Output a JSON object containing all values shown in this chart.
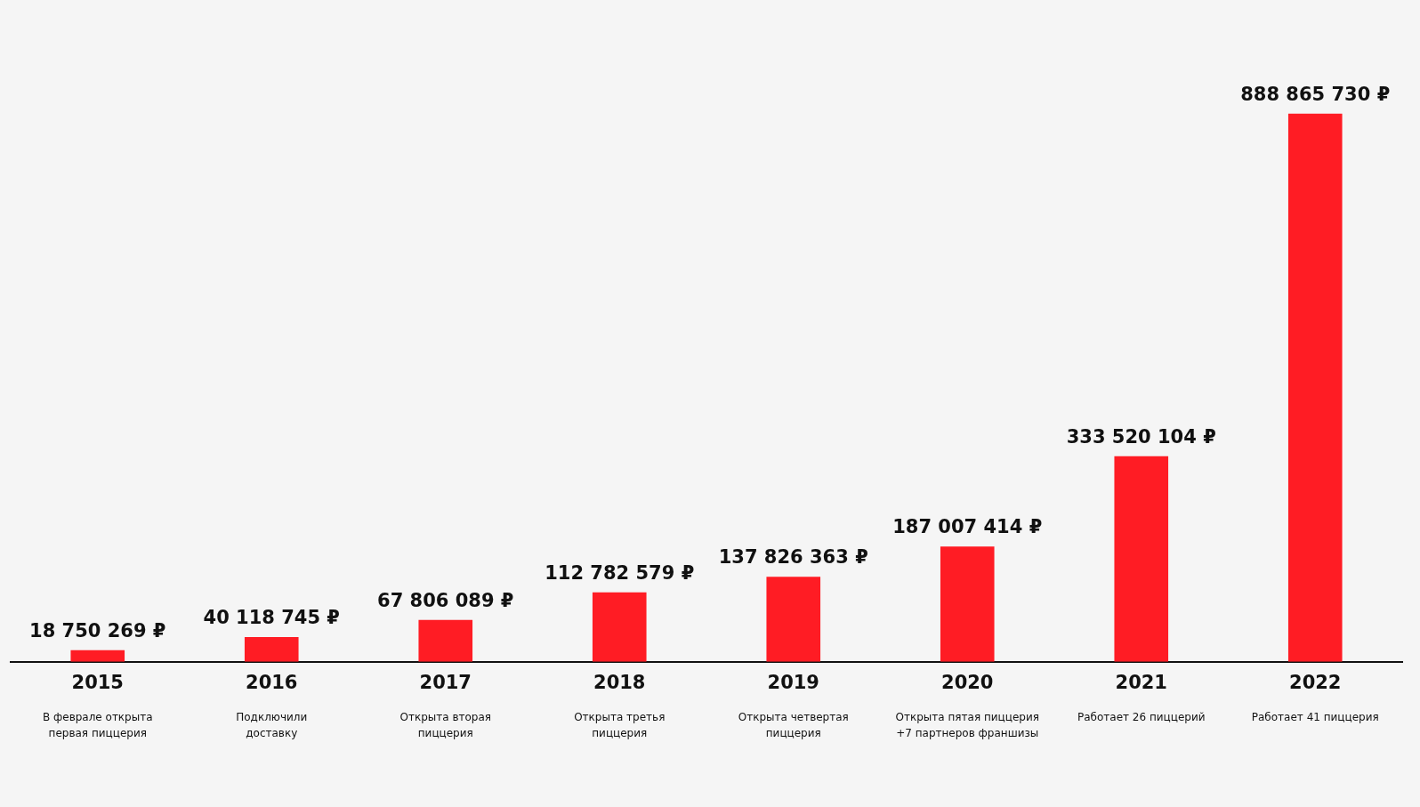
{
  "chart_data": {
    "type": "bar",
    "categories": [
      "2015",
      "2016",
      "2017",
      "2018",
      "2019",
      "2020",
      "2021",
      "2022"
    ],
    "values": [
      18750269,
      40118745,
      67806089,
      112782579,
      137826363,
      187007414,
      333520104,
      888865730
    ],
    "value_labels": [
      "18 750 269 ₽",
      "40 118 745 ₽",
      "67 806 089 ₽",
      "112 782 579 ₽",
      "137 826 363 ₽",
      "187 007 414 ₽",
      "333 520 104 ₽",
      "888 865 730 ₽"
    ],
    "color": "#ff1c24",
    "annotations": [
      "В феврале открыта\nпервая пиццерия",
      "Подключили\nдоставку",
      "Открыта вторая\nпиццерия",
      "Открыта третья\nпиццерия",
      "Открыта четвертая\nпиццерия",
      "Открыта пятая пиццерия\n+7 партнеров франшизы",
      "Работает 26 пиццерий",
      "Работает 41 пиццерия"
    ],
    "grid": false,
    "legend": false,
    "tick_labels": "x"
  }
}
